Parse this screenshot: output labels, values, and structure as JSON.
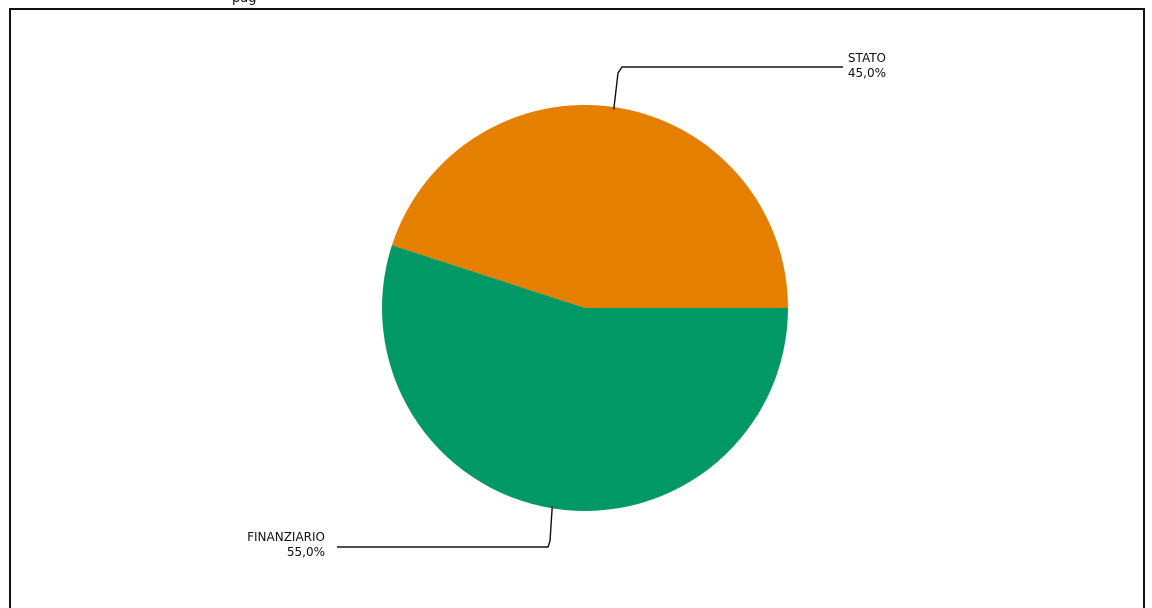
{
  "page": {
    "clipped_top_text": "pag"
  },
  "chart_data": {
    "type": "pie",
    "title": "",
    "slices": [
      {
        "label": "STATO",
        "value": 45.0,
        "value_label": "45,0%",
        "color": "#E57F00"
      },
      {
        "label": "FINANZIARIO",
        "value": 55.0,
        "value_label": "55,0%",
        "color": "#009966"
      }
    ],
    "legend": "none",
    "start_angle_deg": 0,
    "direction": "counterclockwise"
  }
}
